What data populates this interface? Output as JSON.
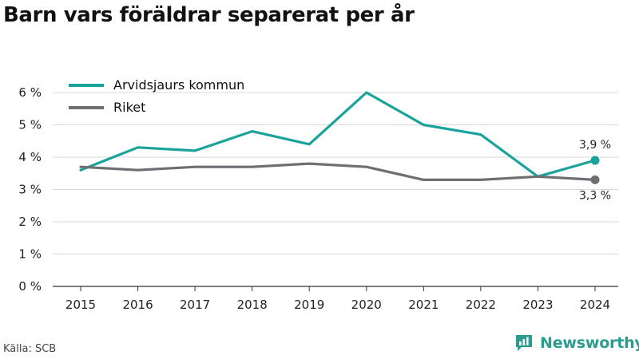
{
  "page": {
    "title": "Barn vars föräldrar separerat per år",
    "source": "Källa: SCB",
    "brand": "Newsworthy"
  },
  "colors": {
    "series_1": "#1aa39b",
    "series_2": "#6e6e73",
    "grid": "#d9d9d9",
    "axis": "#333333",
    "brand": "#2a9d8f"
  },
  "chart_data": {
    "type": "line",
    "title": "Barn vars föräldrar separerat per år",
    "xlabel": "",
    "ylabel": "",
    "x": [
      "2015",
      "2016",
      "2017",
      "2018",
      "2019",
      "2020",
      "2021",
      "2022",
      "2023",
      "2024"
    ],
    "yticks": [
      "0 %",
      "1 %",
      "2 %",
      "3 %",
      "4 %",
      "5 %",
      "6 %"
    ],
    "ylim": [
      0,
      6
    ],
    "grid": true,
    "legend": "top-left",
    "series": [
      {
        "name": "Arvidsjaurs kommun",
        "values": [
          3.6,
          4.3,
          4.2,
          4.8,
          4.4,
          6.0,
          5.0,
          4.7,
          3.4,
          3.9
        ],
        "end_label": "3,9 %"
      },
      {
        "name": "Riket",
        "values": [
          3.7,
          3.6,
          3.7,
          3.7,
          3.8,
          3.7,
          3.3,
          3.3,
          3.4,
          3.3
        ],
        "end_label": "3,3 %"
      }
    ]
  }
}
